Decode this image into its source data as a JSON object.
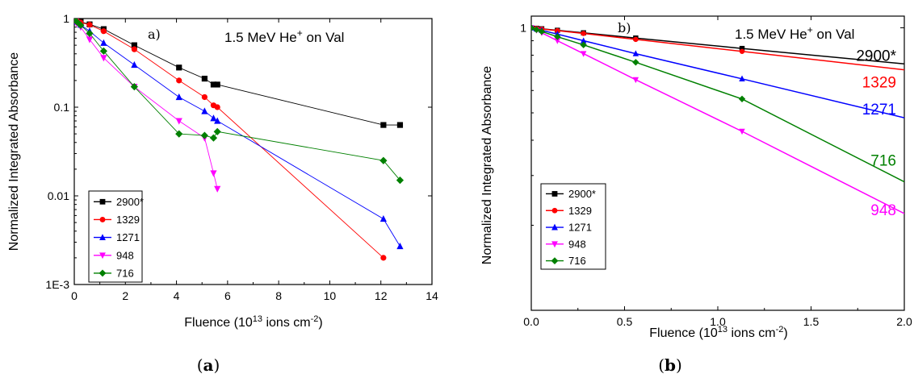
{
  "chart_data": [
    {
      "type": "scatter",
      "panel": "a)",
      "caption": {
        "open": "(",
        "letter": "a",
        "close": ")"
      },
      "annotation": {
        "prefix": "1.5 MeV He",
        "sup": "+",
        "suffix": " on Val"
      },
      "xlabel": {
        "prefix": "Fluence (10",
        "sup": "13",
        "mid": " ions cm",
        "sup2": "-2",
        "suffix": ")"
      },
      "ylabel": "Normalized Integrated Absorbance",
      "xscale": "linear",
      "yscale": "log",
      "xlim": [
        0,
        14
      ],
      "ylim": [
        0.001,
        1
      ],
      "xticks": [
        "0",
        "2",
        "4",
        "6",
        "8",
        "10",
        "12",
        "14"
      ],
      "yticks": [
        "1E-3",
        "0.01",
        "0.1",
        "1"
      ],
      "legend_position": "bottom-left",
      "series": [
        {
          "name": "2900*",
          "color": "#000000",
          "marker": "square",
          "x": [
            0.05,
            0.1,
            0.25,
            0.6,
            1.15,
            2.35,
            4.1,
            5.1,
            5.45,
            5.6,
            12.1,
            12.75
          ],
          "y": [
            0.97,
            0.95,
            0.92,
            0.86,
            0.76,
            0.5,
            0.28,
            0.21,
            0.18,
            0.18,
            0.063,
            0.063
          ]
        },
        {
          "name": "1329",
          "color": "#ff0000",
          "marker": "circle",
          "x": [
            0.05,
            0.1,
            0.25,
            0.6,
            1.15,
            2.35,
            4.1,
            5.1,
            5.45,
            5.6,
            12.1
          ],
          "y": [
            0.97,
            0.95,
            0.9,
            0.85,
            0.72,
            0.45,
            0.2,
            0.13,
            0.105,
            0.1,
            0.002
          ]
        },
        {
          "name": "1271",
          "color": "#0000ff",
          "marker": "triangle-up",
          "x": [
            0.05,
            0.1,
            0.25,
            0.6,
            1.15,
            2.35,
            4.1,
            5.1,
            5.45,
            5.6,
            12.1,
            12.75
          ],
          "y": [
            0.95,
            0.92,
            0.85,
            0.72,
            0.53,
            0.3,
            0.13,
            0.09,
            0.075,
            0.07,
            0.0055,
            0.0027
          ]
        },
        {
          "name": "948",
          "color": "#ff00ff",
          "marker": "triangle-down",
          "x": [
            0.05,
            0.1,
            0.25,
            0.6,
            1.15,
            2.35,
            4.1,
            5.1,
            5.45,
            5.6
          ],
          "y": [
            0.92,
            0.88,
            0.8,
            0.58,
            0.36,
            0.17,
            0.07,
            0.045,
            0.018,
            0.012
          ]
        },
        {
          "name": "716",
          "color": "#008000",
          "marker": "diamond",
          "x": [
            0.05,
            0.1,
            0.25,
            0.6,
            1.15,
            2.35,
            4.1,
            5.1,
            5.45,
            5.6,
            12.1,
            12.75
          ],
          "y": [
            0.95,
            0.92,
            0.84,
            0.68,
            0.43,
            0.17,
            0.05,
            0.048,
            0.045,
            0.053,
            0.025,
            0.015
          ]
        }
      ]
    },
    {
      "type": "line",
      "panel": "b)",
      "caption": {
        "open": "(",
        "letter": "b",
        "close": ")"
      },
      "annotation": {
        "prefix": "1.5 MeV He",
        "sup": "+",
        "suffix": " on Val"
      },
      "xlabel": {
        "prefix": "Fluence (10",
        "sup": "13",
        "mid": " ions cm",
        "sup2": "-2",
        "suffix": ")"
      },
      "ylabel": "Normalized Integrated Absorbance",
      "xscale": "linear",
      "yscale": "log",
      "xlim": [
        0,
        2.0
      ],
      "ylim": [
        0.1,
        1.1
      ],
      "xticks": [
        "0.0",
        "0.5",
        "1.0",
        "1.5",
        "2.0"
      ],
      "yticks": [
        "1"
      ],
      "legend_position": "bottom-left",
      "series": [
        {
          "name": "2900*",
          "color": "#000000",
          "marker": "square",
          "end_label": "2900*",
          "x": [
            0,
            0.028,
            0.056,
            0.14,
            0.28,
            0.56,
            1.13,
            2.0
          ],
          "y": [
            1.0,
            0.996,
            0.992,
            0.98,
            0.96,
            0.92,
            0.845,
            0.745
          ]
        },
        {
          "name": "1329",
          "color": "#ff0000",
          "marker": "circle",
          "end_label": "1329",
          "x": [
            0,
            0.028,
            0.056,
            0.14,
            0.28,
            0.56,
            1.13,
            2.0
          ],
          "y": [
            1.0,
            0.996,
            0.99,
            0.977,
            0.955,
            0.91,
            0.825,
            0.71
          ]
        },
        {
          "name": "1271",
          "color": "#0000ff",
          "marker": "triangle-up",
          "end_label": "1271",
          "x": [
            0,
            0.028,
            0.056,
            0.14,
            0.28,
            0.56,
            1.13,
            2.0
          ],
          "y": [
            1.0,
            0.99,
            0.98,
            0.95,
            0.9,
            0.81,
            0.66,
            0.48
          ]
        },
        {
          "name": "948",
          "color": "#ff00ff",
          "marker": "triangle-down",
          "end_label": "948",
          "x": [
            0,
            0.028,
            0.056,
            0.14,
            0.28,
            0.56,
            1.13,
            2.0
          ],
          "y": [
            1.0,
            0.98,
            0.96,
            0.9,
            0.81,
            0.655,
            0.43,
            0.22
          ]
        },
        {
          "name": "716",
          "color": "#008000",
          "marker": "diamond",
          "end_label": "716",
          "x": [
            0,
            0.028,
            0.056,
            0.14,
            0.28,
            0.56,
            1.13,
            2.0
          ],
          "y": [
            1.0,
            0.985,
            0.97,
            0.93,
            0.87,
            0.755,
            0.56,
            0.285
          ]
        }
      ]
    }
  ]
}
